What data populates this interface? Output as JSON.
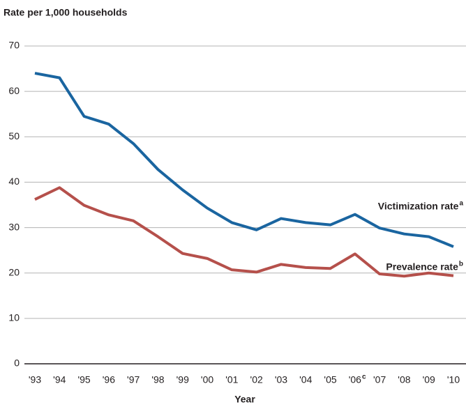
{
  "chart_data": {
    "type": "line",
    "title": "Rate per 1,000 households",
    "x_label": "Year",
    "categories": [
      "'93",
      "'94",
      "'95",
      "'96",
      "'97",
      "'98",
      "'99",
      "'00",
      "'01",
      "'02",
      "'03",
      "'04",
      "'05",
      "'06",
      "'07",
      "'08",
      "'09",
      "'10"
    ],
    "category_notes": [
      null,
      null,
      null,
      null,
      null,
      null,
      null,
      null,
      null,
      null,
      null,
      null,
      null,
      "c",
      null,
      null,
      null,
      null
    ],
    "series": [
      {
        "name": "Victimization rate",
        "name_note": "a",
        "color": "#1a65a0",
        "values": [
          64,
          63,
          54.5,
          52.8,
          48.5,
          42.8,
          38.3,
          34.3,
          31.1,
          29.5,
          32,
          31.1,
          30.6,
          32.9,
          29.9,
          28.6,
          28,
          25.8
        ]
      },
      {
        "name": "Prevalence rate",
        "name_note": "b",
        "color": "#b5504b",
        "values": [
          36.2,
          38.8,
          34.9,
          32.8,
          31.5,
          28,
          24.3,
          23.2,
          20.7,
          20.2,
          21.9,
          21.2,
          21,
          24.2,
          19.8,
          19.3,
          20,
          19.4
        ]
      }
    ],
    "ylim": [
      0,
      70
    ],
    "yticks": [
      0,
      10,
      20,
      30,
      40,
      50,
      60,
      70
    ],
    "grid": true
  }
}
